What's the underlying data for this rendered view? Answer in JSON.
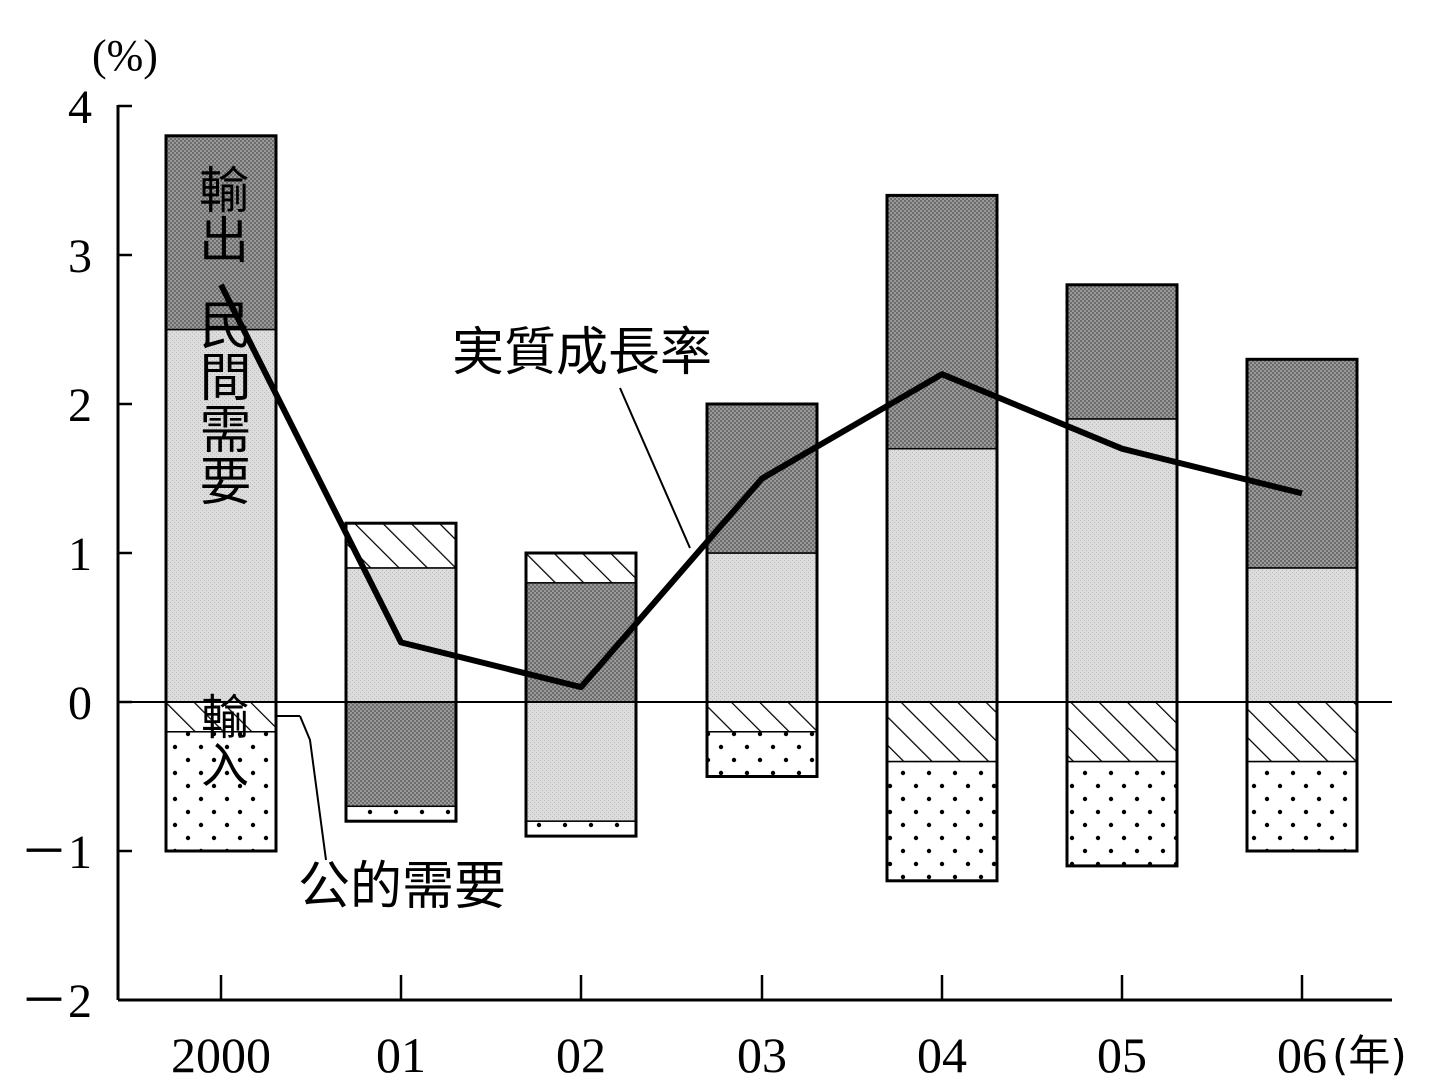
{
  "chart_data": {
    "type": "bar",
    "stacked": true,
    "y_unit_label": "(%)",
    "x_unit_label": "(年)",
    "categories": [
      "2000",
      "01",
      "02",
      "03",
      "04",
      "05",
      "06"
    ],
    "ylim": [
      -2,
      4
    ],
    "yticks": [
      4,
      3,
      2,
      1,
      0,
      -1,
      -2
    ],
    "ytick_labels": [
      "4",
      "3",
      "2",
      "1",
      "0",
      "－1",
      "－2"
    ],
    "series": [
      {
        "name": "民間需要",
        "pattern": "light",
        "values": [
          2.5,
          0.9,
          -0.8,
          1.0,
          1.7,
          1.9,
          0.9
        ]
      },
      {
        "name": "輸出",
        "pattern": "dark",
        "values": [
          1.3,
          -0.7,
          0.8,
          1.0,
          1.7,
          0.9,
          1.4
        ]
      },
      {
        "name": "公的需要",
        "pattern": "hatched",
        "values": [
          -0.2,
          0.3,
          0.2,
          -0.2,
          -0.4,
          -0.4,
          -0.4
        ]
      },
      {
        "name": "輸入",
        "pattern": "dotted",
        "values": [
          -0.8,
          -0.1,
          -0.1,
          -0.3,
          -0.8,
          -0.7,
          -0.6
        ]
      }
    ],
    "line": {
      "name": "実質成長率",
      "values": [
        2.8,
        0.4,
        0.1,
        1.5,
        2.2,
        1.7,
        1.4
      ]
    },
    "labels": {
      "export_label": "輸出",
      "private_label": "民間需要",
      "import_label": "輸入",
      "public_label": "公的需要",
      "growth_label": "実質成長率"
    },
    "colors": {
      "light": "#d9d9d9",
      "dark": "#8e8e8e",
      "line": "#000000"
    }
  }
}
